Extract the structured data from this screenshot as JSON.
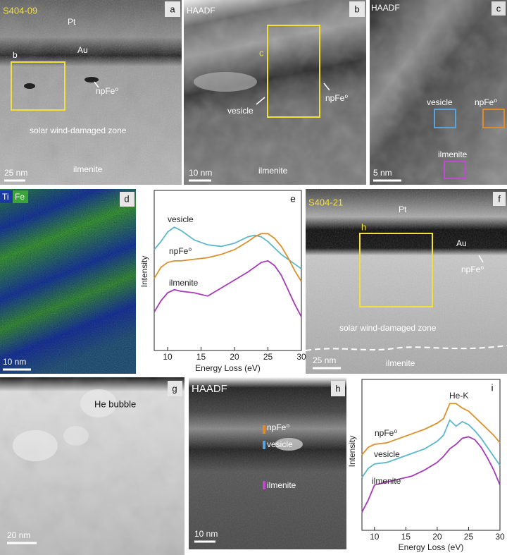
{
  "panels": {
    "a": {
      "letter": "a",
      "sample": "S404-09",
      "labels": [
        "Pt",
        "Au",
        "b",
        "npFe⁰",
        "solar wind-damaged zone",
        "ilmenite"
      ],
      "scale": "25 nm"
    },
    "b": {
      "letter": "b",
      "mode": "HAADF",
      "labels": [
        "c",
        "vesicle",
        "npFe⁰",
        "ilmenite"
      ],
      "scale": "10 nm"
    },
    "c": {
      "letter": "c",
      "mode": "HAADF",
      "labels": [
        "vesicle",
        "npFe⁰",
        "ilmenite"
      ],
      "scale": "5 nm"
    },
    "d": {
      "letter": "d",
      "elements": [
        "Ti",
        "Fe"
      ],
      "scale": "10 nm"
    },
    "f": {
      "letter": "f",
      "sample": "S404-21",
      "labels": [
        "Pt",
        "h",
        "Au",
        "npFe⁰",
        "solar wind-damaged zone",
        "ilmenite"
      ],
      "scale": "25 nm"
    },
    "g": {
      "letter": "g",
      "labels": [
        "He bubble"
      ],
      "scale": "20 nm"
    },
    "h": {
      "letter": "h",
      "mode": "HAADF",
      "labels": [
        "npFe⁰",
        "vesicle",
        "ilmenite"
      ],
      "scale": "10 nm"
    }
  },
  "chart_data": [
    {
      "type": "line",
      "panel": "e",
      "x_label": "Energy Loss (eV)",
      "y_label": "Intensity",
      "x": [
        8,
        9,
        10,
        11,
        12,
        14,
        16,
        18,
        20,
        22,
        23,
        24,
        25,
        26,
        27,
        28,
        29,
        30
      ],
      "xlim": [
        8,
        30
      ],
      "xticks": [
        10,
        15,
        20,
        25,
        30
      ],
      "ylim": [
        0,
        100
      ],
      "series": [
        {
          "name": "vesicle",
          "color": "#5bb8c9",
          "values": [
            63,
            68,
            74,
            77,
            75,
            69,
            66,
            65,
            67,
            71,
            72,
            71,
            68,
            64,
            60,
            57,
            54,
            51
          ]
        },
        {
          "name": "npFe⁰",
          "color": "#d9912c",
          "values": [
            45,
            52,
            55,
            56,
            56,
            57,
            58,
            60,
            63,
            68,
            71,
            73,
            73,
            70,
            65,
            58,
            50,
            43
          ]
        },
        {
          "name": "ilmenite",
          "color": "#a63ab8",
          "values": [
            24,
            31,
            36,
            38,
            37,
            36,
            34,
            39,
            44,
            49,
            52,
            55,
            56,
            53,
            47,
            38,
            29,
            21
          ]
        }
      ]
    },
    {
      "type": "line",
      "panel": "i",
      "x_label": "Energy Loss (eV)",
      "y_label": "Intensity",
      "annotation": "He-K",
      "x": [
        8,
        9,
        10,
        12,
        14,
        16,
        18,
        20,
        21,
        22,
        23,
        24,
        25,
        26,
        27,
        28,
        29,
        30
      ],
      "xlim": [
        8,
        30
      ],
      "xticks": [
        10,
        15,
        20,
        25,
        30
      ],
      "ylim": [
        0,
        100
      ],
      "series": [
        {
          "name": "npFe⁰",
          "color": "#d9912c",
          "values": [
            50,
            55,
            57,
            58,
            61,
            64,
            67,
            71,
            74,
            84,
            84,
            81,
            79,
            75,
            71,
            67,
            63,
            58
          ]
        },
        {
          "name": "vesicle",
          "color": "#5bb8c9",
          "values": [
            35,
            41,
            44,
            45,
            48,
            51,
            54,
            59,
            63,
            73,
            69,
            72,
            70,
            66,
            61,
            55,
            49,
            43
          ]
        },
        {
          "name": "ilmenite",
          "color": "#a63ab8",
          "values": [
            12,
            20,
            30,
            32,
            34,
            36,
            40,
            45,
            49,
            54,
            57,
            61,
            62,
            60,
            55,
            48,
            40,
            30
          ]
        }
      ]
    }
  ]
}
